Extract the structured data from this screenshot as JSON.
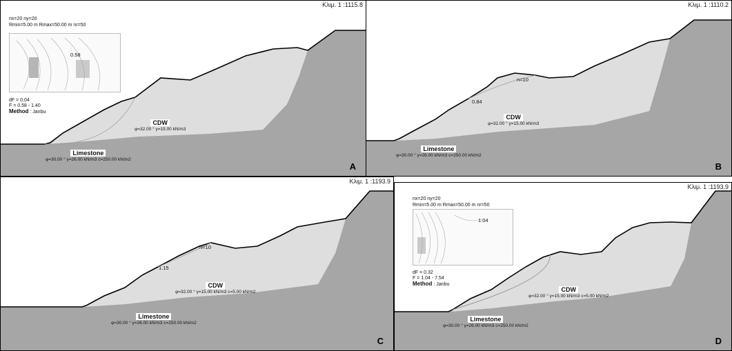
{
  "panels": [
    {
      "id": "A",
      "scale": "Κλιμ. 1 :1115.8",
      "label": "A",
      "grid_text_1": "nx=20 ny=20",
      "grid_text_2": "Rmin=5.00 m Rmax=50.00 m nr=50",
      "contour_value": "0.58",
      "dF": "dF = 0.04",
      "F_range": "F = 0.58 - 1.40",
      "method_label": "Method",
      "method_value": ": Janbu",
      "cdw_name": "CDW",
      "cdw_props": "φ=32.00 ° γ=15.00 kN/m3",
      "lime_name": "Limestone",
      "lime_props": "φ=30.00 ° γ=26.00 kN/m3 c=250.00 kN/m2"
    },
    {
      "id": "B",
      "scale": "Κλιμ. 1 :1110.2",
      "label": "B",
      "n_label": "n=10",
      "fs_value": "0.84",
      "cdw_name": "CDW",
      "cdw_props": "φ=32.00 ° γ=15.00 kN/m3",
      "lime_name": "Limestone",
      "lime_props": "φ=30.00 ° γ=26.00 kN/m3 c=250.00 kN/m2"
    },
    {
      "id": "C",
      "scale": "Κλιμ. 1 :1193.9",
      "label": "C",
      "n_label": "n=10",
      "fs_value": "1.15",
      "cdw_name": "CDW",
      "cdw_props": "φ=32.00 ° γ=15.00 kN/m3 c=5.00 kN/m2",
      "lime_name": "Limestone",
      "lime_props": "φ=30.00 ° γ=26.00 kN/m3 c=250.00 kN/m2"
    },
    {
      "id": "D",
      "scale": "Κλιμ. 1 :1193.9",
      "label": "D",
      "grid_text_1": "nx=20 ny=20",
      "grid_text_2": "Rmin=5.00 m Rmax=50.00 m nr=50",
      "contour_value": "1.04",
      "dF": "dF = 0.32",
      "F_range": "F = 1.04 - 7.54",
      "method_label": "Method",
      "method_value": ": Janbu",
      "cdw_name": "CDW",
      "cdw_props": "φ=32.00 ° γ=15.00 kN/m3 c=5.00 kN/m2",
      "lime_name": "Limestone",
      "lime_props": "φ=30.00 ° γ=26.00 kN/m3 c=250.00 kN/m2"
    }
  ],
  "colors": {
    "limestone": "#a6a6a6",
    "cdw": "#dedede",
    "surface_line": "#000000"
  }
}
